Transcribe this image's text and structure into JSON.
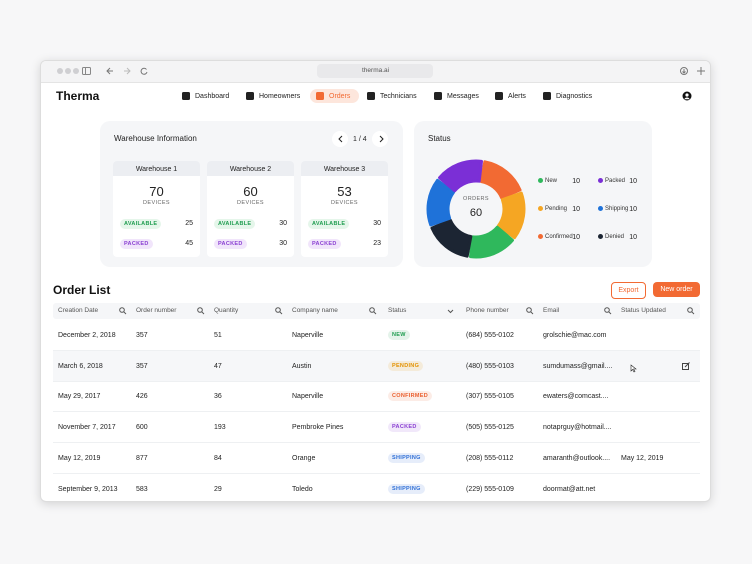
{
  "browser": {
    "url": "therma.ai"
  },
  "header": {
    "logo": "Therma",
    "nav": [
      "Dashboard",
      "Homeowners",
      "Orders",
      "Technicians",
      "Messages",
      "Alerts",
      "Diagnostics"
    ]
  },
  "warehouse": {
    "title": "Warehouse Information",
    "pager": "1 / 4",
    "cards": [
      {
        "name": "Warehouse 1",
        "devices": 70,
        "unit": "DEVICES",
        "available_label": "AVAILABLE",
        "available": 25,
        "packed_label": "PACKED",
        "packed": 45
      },
      {
        "name": "Warehouse 2",
        "devices": 60,
        "unit": "DEVICES",
        "available_label": "AVAILABLE",
        "available": 30,
        "packed_label": "PACKED",
        "packed": 30
      },
      {
        "name": "Warehouse 3",
        "devices": 53,
        "unit": "DEVICES",
        "available_label": "AVAILABLE",
        "available": 30,
        "packed_label": "PACKED",
        "packed": 23
      }
    ]
  },
  "status": {
    "title": "Status",
    "center_label": "ORDERS",
    "total": 60,
    "items": [
      {
        "name": "New",
        "value": 10,
        "color": "#2fb85c"
      },
      {
        "name": "Packed",
        "value": 10,
        "color": "#7b2fd6"
      },
      {
        "name": "Pending",
        "value": 10,
        "color": "#f5a623"
      },
      {
        "name": "Shipping",
        "value": 10,
        "color": "#1f72d9"
      },
      {
        "name": "Confirmed",
        "value": 10,
        "color": "#f26a33"
      },
      {
        "name": "Denied",
        "value": 10,
        "color": "#1c2533"
      }
    ]
  },
  "orders": {
    "title": "Order List",
    "export": "Export",
    "new_order": "New order",
    "columns": [
      "Creation Date",
      "Order number",
      "Quantity",
      "Company name",
      "Status",
      "Phone number",
      "Email",
      "Status Updated"
    ],
    "rows": [
      {
        "date": "December 2, 2018",
        "number": 357,
        "quantity": 51,
        "company": "Naperville",
        "status": "NEW",
        "status_color": "#1f9d50",
        "phone": "(684) 555-0102",
        "email": "grolschie@mac.com",
        "updated": null
      },
      {
        "date": "March 6, 2018",
        "number": 357,
        "quantity": 47,
        "company": "Austin",
        "status": "PENDING",
        "status_color": "#e39200",
        "phone": "(480) 555-0103",
        "email": "sumdumass@gmail....",
        "updated": null
      },
      {
        "date": "May 29, 2017",
        "number": 426,
        "quantity": 36,
        "company": "Naperville",
        "status": "CONFIRMED",
        "status_color": "#ea5f2e",
        "phone": "(307) 555-0105",
        "email": "ewaters@comcast....",
        "updated": null
      },
      {
        "date": "November 7, 2017",
        "number": 600,
        "quantity": 193,
        "company": "Pembroke Pines",
        "status": "PACKED",
        "status_color": "#8a3fd2",
        "phone": "(505) 555-0125",
        "email": "notaprguy@hotmail....",
        "updated": null
      },
      {
        "date": "May 12, 2019",
        "number": 877,
        "quantity": 84,
        "company": "Orange",
        "status": "SHIPPING",
        "status_color": "#2f6fd6",
        "phone": "(208) 555-0112",
        "email": "amaranth@outlook....",
        "updated": "May 12, 2019"
      },
      {
        "date": "September 9, 2013",
        "number": 583,
        "quantity": 29,
        "company": "Toledo",
        "status": "SHIPPING",
        "status_color": "#2f6fd6",
        "phone": "(229) 555-0109",
        "email": "doormat@att.net",
        "updated": null
      }
    ]
  }
}
